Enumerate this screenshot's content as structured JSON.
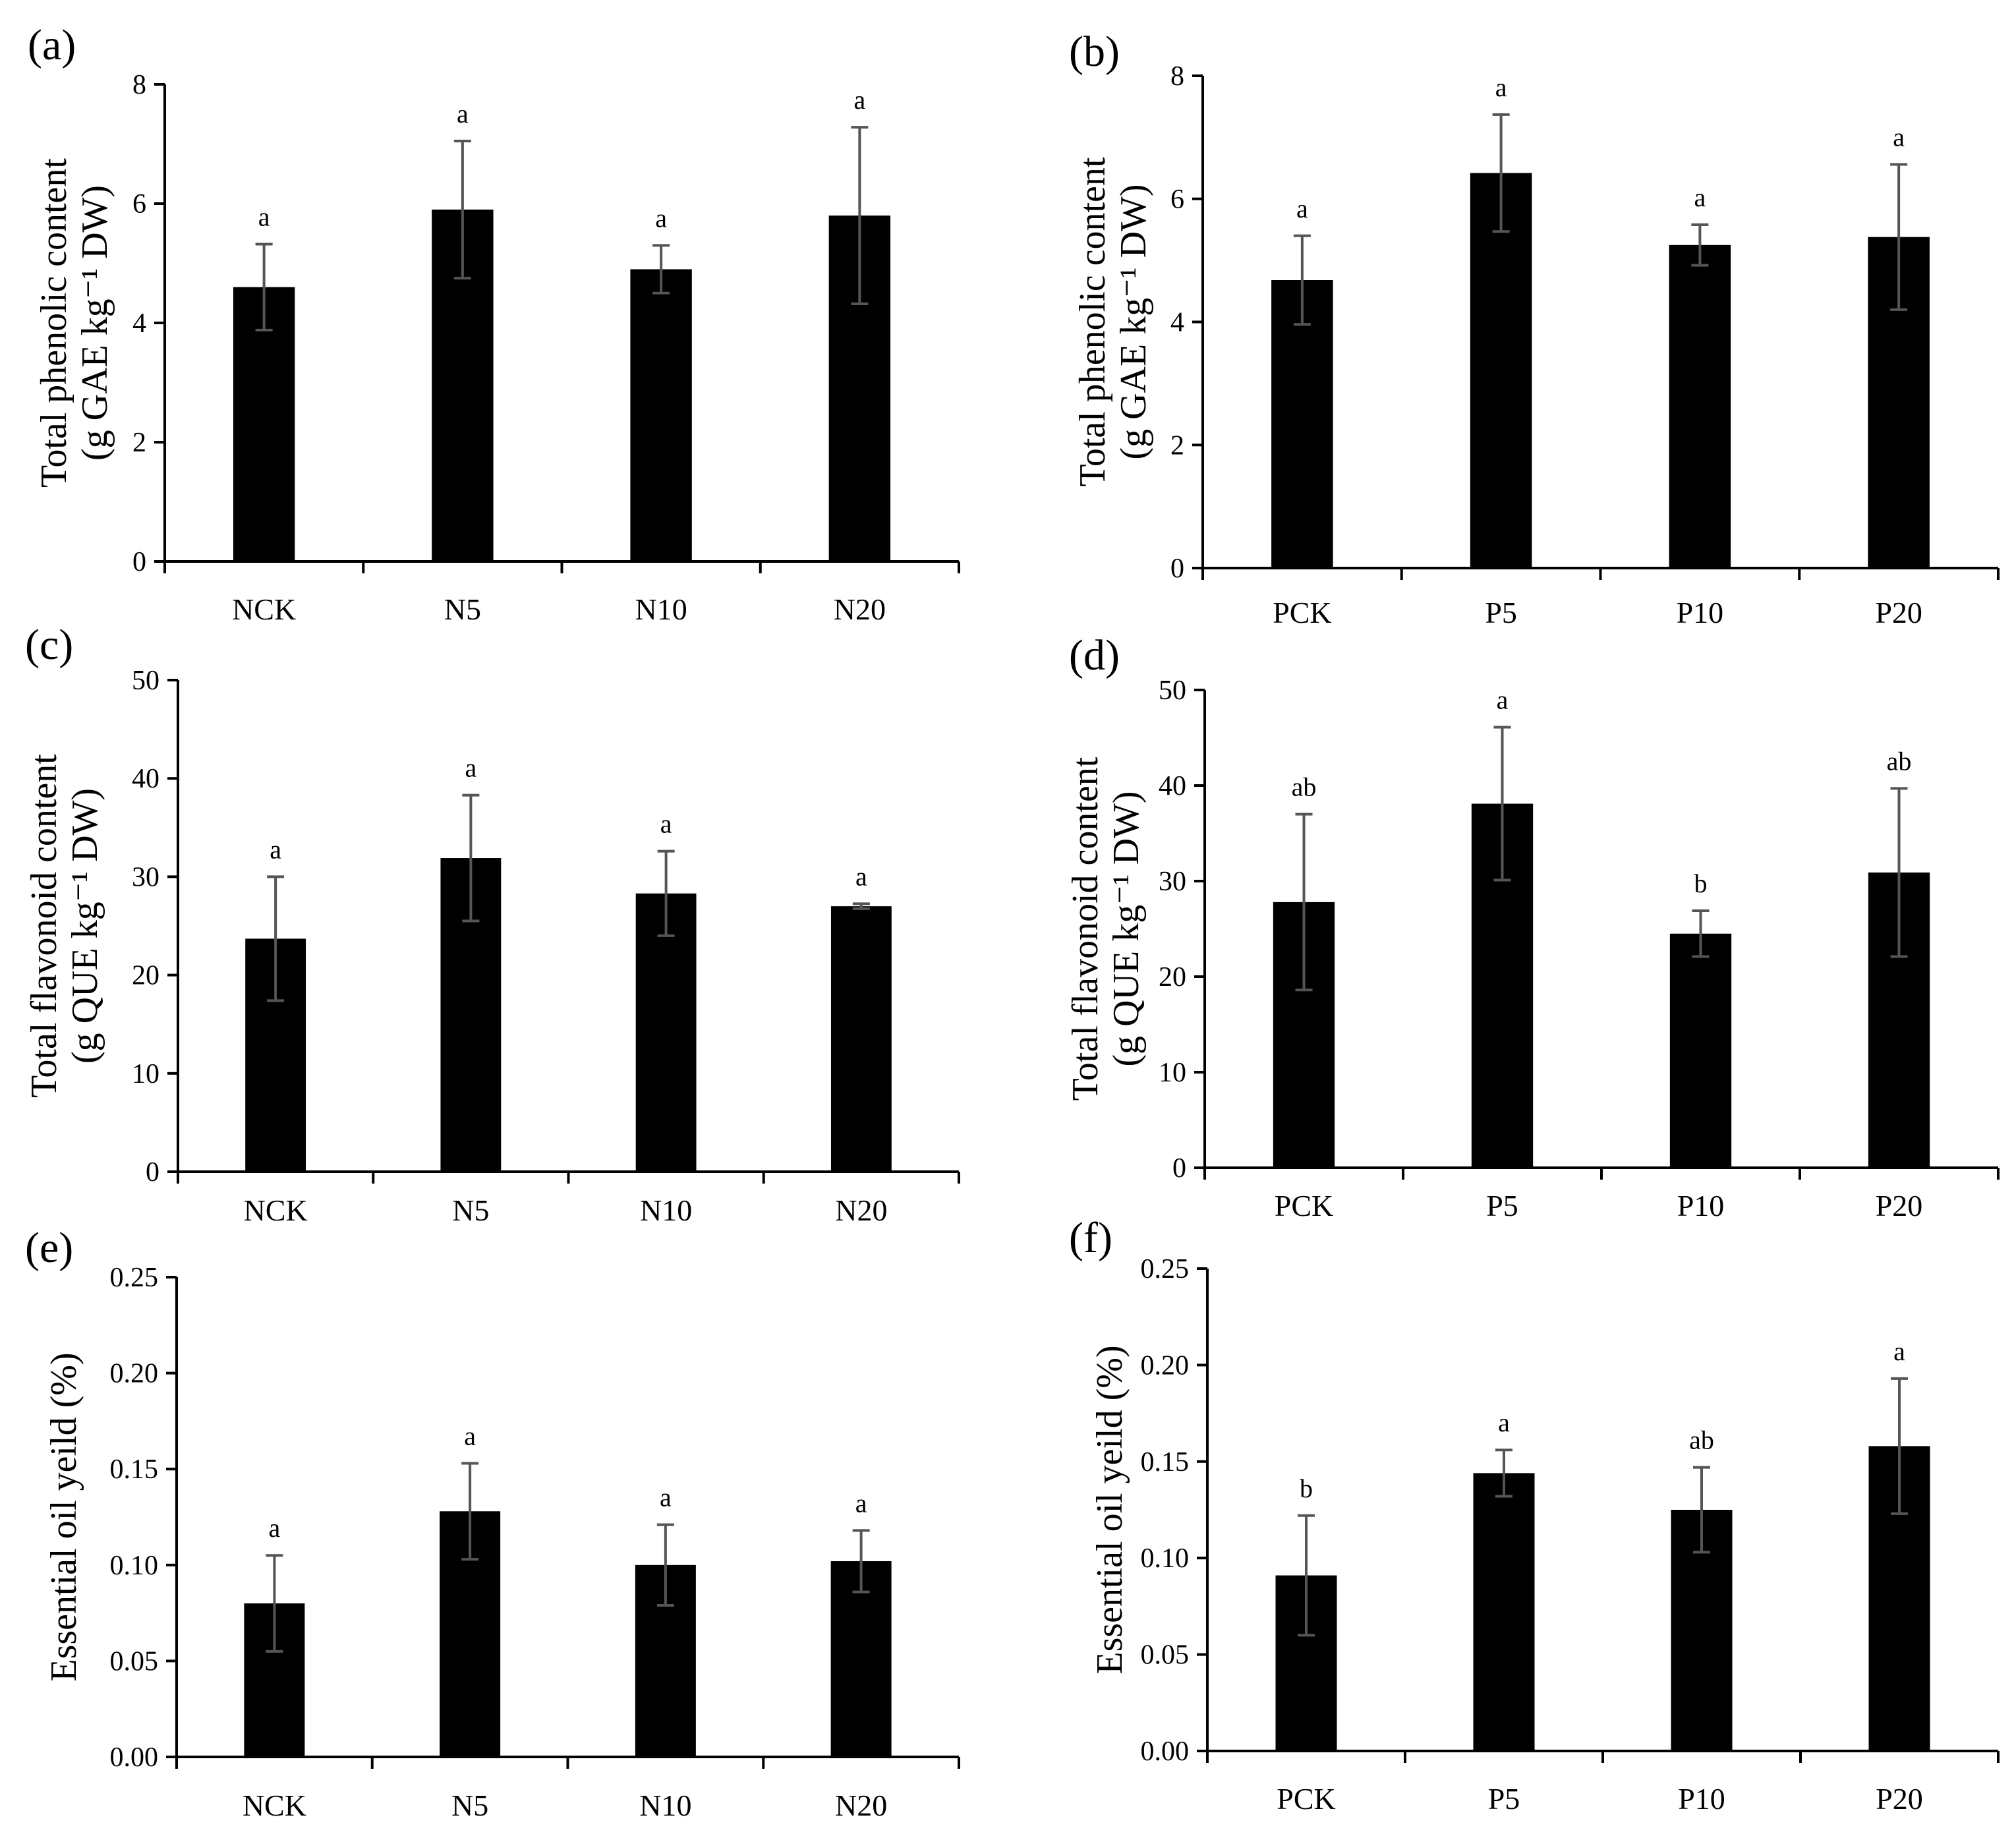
{
  "figure": {
    "background": "#ffffff",
    "bar_color": "#000000",
    "error_bar_color": "#555555"
  },
  "chart_data": [
    {
      "id": "a",
      "panel_label": "(a)",
      "type": "bar",
      "categories": [
        "NCK",
        "N5",
        "N10",
        "N20"
      ],
      "values": [
        4.6,
        5.9,
        4.9,
        5.8
      ],
      "errors": [
        0.72,
        1.15,
        0.4,
        1.48
      ],
      "significance": [
        "a",
        "a",
        "a",
        "a"
      ],
      "ylabel_lines": [
        "Total phenolic content",
        "(g GAE kg⁻¹ DW)"
      ],
      "ylim": [
        0,
        8
      ],
      "yticks": [
        "0",
        "2",
        "4",
        "6",
        "8"
      ],
      "xlabel": ""
    },
    {
      "id": "b",
      "panel_label": "(b)",
      "type": "bar",
      "categories": [
        "PCK",
        "P5",
        "P10",
        "P20"
      ],
      "values": [
        4.68,
        6.42,
        5.25,
        5.38
      ],
      "errors": [
        0.72,
        0.95,
        0.33,
        1.18
      ],
      "significance": [
        "a",
        "a",
        "a",
        "a"
      ],
      "ylabel_lines": [
        "Total phenolic content",
        "(g GAE kg⁻¹ DW)"
      ],
      "ylim": [
        0,
        8
      ],
      "yticks": [
        "0",
        "2",
        "4",
        "6",
        "8"
      ],
      "xlabel": ""
    },
    {
      "id": "c",
      "panel_label": "(c)",
      "type": "bar",
      "categories": [
        "NCK",
        "N5",
        "N10",
        "N20"
      ],
      "values": [
        23.7,
        31.9,
        28.3,
        27
      ],
      "errors": [
        6.3,
        6.4,
        4.3,
        0.25
      ],
      "significance": [
        "a",
        "a",
        "a",
        "a"
      ],
      "ylabel_lines": [
        "Total flavonoid content",
        "(g QUE kg⁻¹ DW)"
      ],
      "ylim": [
        0,
        50
      ],
      "yticks": [
        "0",
        "10",
        "20",
        "30",
        "40",
        "50"
      ],
      "xlabel": ""
    },
    {
      "id": "d",
      "panel_label": "(d)",
      "type": "bar",
      "categories": [
        "PCK",
        "P5",
        "P10",
        "P20"
      ],
      "values": [
        27.8,
        38.1,
        24.5,
        30.9
      ],
      "errors": [
        9.2,
        8,
        2.4,
        8.8
      ],
      "significance": [
        "ab",
        "a",
        "b",
        "ab"
      ],
      "ylabel_lines": [
        "Total flavonoid content",
        "(g QUE kg⁻¹ DW)"
      ],
      "ylim": [
        0,
        50
      ],
      "yticks": [
        "0",
        "10",
        "20",
        "30",
        "40",
        "50"
      ],
      "xlabel": ""
    },
    {
      "id": "e",
      "panel_label": "(e)",
      "type": "bar",
      "categories": [
        "NCK",
        "N5",
        "N10",
        "N20"
      ],
      "values": [
        0.08,
        0.128,
        0.1,
        0.102
      ],
      "errors": [
        0.025,
        0.025,
        0.021,
        0.016
      ],
      "significance": [
        "a",
        "a",
        "a",
        "a"
      ],
      "ylabel_lines": [
        "Essential oil yeild (%)"
      ],
      "ylim": [
        0,
        0.25
      ],
      "yticks": [
        "0.00",
        "0.05",
        "0.10",
        "0.15",
        "0.20",
        "0.25"
      ],
      "xlabel": ""
    },
    {
      "id": "f",
      "panel_label": "(f)",
      "type": "bar",
      "categories": [
        "PCK",
        "P5",
        "P10",
        "P20"
      ],
      "values": [
        0.091,
        0.144,
        0.125,
        0.158
      ],
      "errors": [
        0.031,
        0.012,
        0.022,
        0.035
      ],
      "significance": [
        "b",
        "a",
        "ab",
        "a"
      ],
      "ylabel_lines": [
        "Essential oil yeild (%)"
      ],
      "ylim": [
        0,
        0.25
      ],
      "yticks": [
        "0.00",
        "0.05",
        "0.10",
        "0.15",
        "0.20",
        "0.25"
      ],
      "xlabel": ""
    }
  ]
}
